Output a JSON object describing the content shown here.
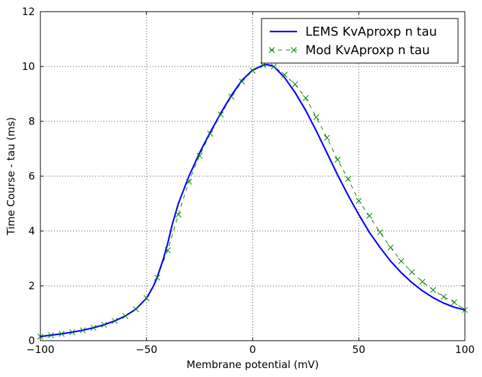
{
  "chart_data": {
    "type": "line",
    "xlabel": "Membrane potential (mV)",
    "ylabel": "Time Course - tau (ms)",
    "xlim": [
      -100,
      100
    ],
    "ylim": [
      0,
      12
    ],
    "xticks": [
      -100,
      -50,
      0,
      50,
      100
    ],
    "xtick_labels": [
      "−100",
      "−50",
      "0",
      "50",
      "100"
    ],
    "yticks": [
      0,
      2,
      4,
      6,
      8,
      10,
      12
    ],
    "ytick_labels": [
      "0",
      "2",
      "4",
      "6",
      "8",
      "10",
      "12"
    ],
    "grid": true,
    "legend_position": "top-right",
    "series": [
      {
        "name": "LEMS KvAproxp n tau",
        "style": "solid-line",
        "color": "#0000ff",
        "x": [
          -100,
          -95,
          -90,
          -85,
          -80,
          -75,
          -70,
          -65,
          -60,
          -55,
          -50,
          -47,
          -45,
          -42,
          -40,
          -38,
          -35,
          -32,
          -30,
          -25,
          -20,
          -15,
          -10,
          -5,
          0,
          5,
          7,
          10,
          15,
          20,
          25,
          30,
          35,
          40,
          45,
          50,
          55,
          60,
          65,
          70,
          75,
          80,
          85,
          90,
          95,
          100
        ],
        "y": [
          0.15,
          0.2,
          0.25,
          0.31,
          0.38,
          0.47,
          0.58,
          0.72,
          0.9,
          1.15,
          1.55,
          1.95,
          2.3,
          3.0,
          3.55,
          4.2,
          5.0,
          5.6,
          6.0,
          6.85,
          7.6,
          8.3,
          8.95,
          9.5,
          9.87,
          10.05,
          10.07,
          10.0,
          9.6,
          9.05,
          8.4,
          7.65,
          6.85,
          6.05,
          5.3,
          4.6,
          3.95,
          3.4,
          2.9,
          2.48,
          2.12,
          1.82,
          1.57,
          1.37,
          1.22,
          1.12
        ]
      },
      {
        "name": "Mod KvAproxp n tau",
        "style": "dashed-x-markers",
        "color": "#008000",
        "x": [
          -100,
          -95,
          -90,
          -85,
          -80,
          -75,
          -70,
          -65,
          -60,
          -55,
          -50,
          -45,
          -40,
          -35,
          -30,
          -25,
          -20,
          -15,
          -10,
          -5,
          0,
          5,
          10,
          15,
          20,
          25,
          30,
          35,
          40,
          45,
          50,
          55,
          60,
          65,
          70,
          75,
          80,
          85,
          90,
          95,
          100
        ],
        "y": [
          0.15,
          0.2,
          0.25,
          0.31,
          0.38,
          0.47,
          0.58,
          0.72,
          0.9,
          1.15,
          1.55,
          2.3,
          3.3,
          4.6,
          5.8,
          6.75,
          7.55,
          8.25,
          8.9,
          9.45,
          9.85,
          10.05,
          10.0,
          9.7,
          9.35,
          8.85,
          8.15,
          7.4,
          6.6,
          5.9,
          5.1,
          4.55,
          3.95,
          3.4,
          2.9,
          2.5,
          2.15,
          1.85,
          1.6,
          1.4,
          1.12
        ]
      }
    ]
  }
}
